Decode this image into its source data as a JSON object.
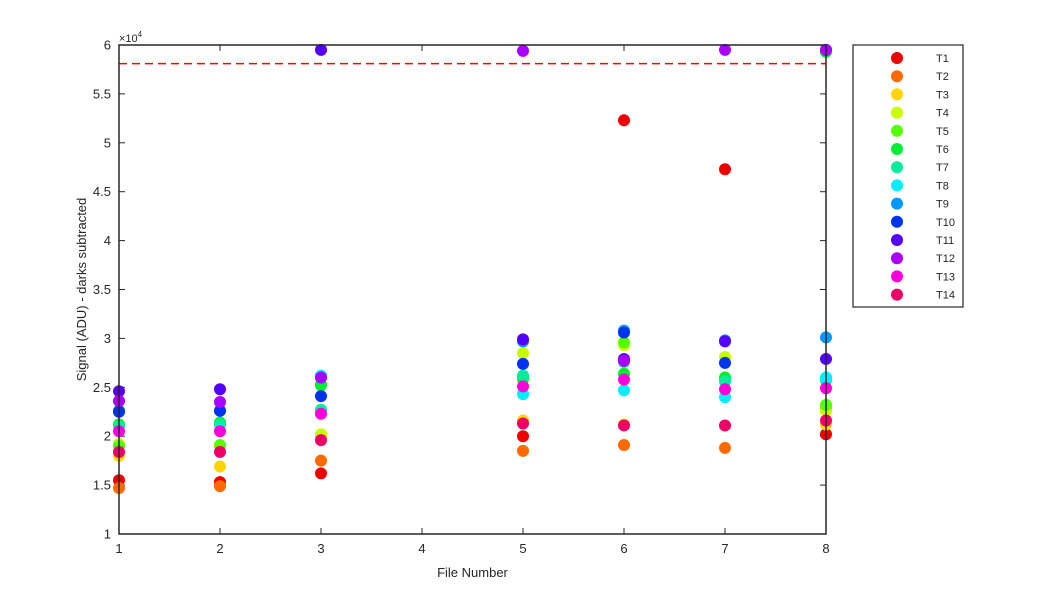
{
  "chart_data": {
    "type": "scatter",
    "title": "",
    "xlabel": "File Number",
    "ylabel": "Signal (ADU) - darks subtracted",
    "xlim": [
      1,
      8
    ],
    "ylim": [
      10000,
      60000
    ],
    "x_ticks": [
      "1",
      "2",
      "3",
      "4",
      "5",
      "6",
      "7",
      "8"
    ],
    "y_ticks": [
      "1",
      "1.5",
      "2",
      "2.5",
      "3",
      "3.5",
      "4",
      "4.5",
      "5",
      "5.5",
      "6"
    ],
    "y_tick_values": [
      10000,
      15000,
      20000,
      25000,
      30000,
      35000,
      40000,
      45000,
      50000,
      55000,
      60000
    ],
    "y_exponent_label": "×10",
    "y_exponent": "4",
    "threshold": {
      "value": 58100,
      "color": "#ff0000",
      "style": "dashed"
    },
    "legend_position": "outside-right",
    "series": [
      {
        "name": "T1",
        "color": "#ee0000",
        "x": [
          1,
          2,
          3,
          5,
          6,
          7,
          8
        ],
        "y": [
          15500,
          15300,
          16200,
          20000,
          52300,
          47300,
          20200
        ]
      },
      {
        "name": "T2",
        "color": "#ff6a00",
        "x": [
          1,
          2,
          3,
          5,
          6,
          7,
          8
        ],
        "y": [
          14700,
          14900,
          17500,
          18500,
          19100,
          18800,
          22800
        ]
      },
      {
        "name": "T3",
        "color": "#ffd400",
        "x": [
          1,
          2,
          3,
          5,
          6,
          7,
          8
        ],
        "y": [
          18000,
          16900,
          20000,
          21600,
          21200,
          21100,
          21200
        ]
      },
      {
        "name": "T4",
        "color": "#c8ff00",
        "x": [
          1,
          2,
          3,
          5,
          6,
          7,
          8
        ],
        "y": [
          19200,
          19000,
          20200,
          28500,
          29300,
          28100,
          22600
        ]
      },
      {
        "name": "T5",
        "color": "#55ff00",
        "x": [
          1,
          2,
          3,
          5,
          6,
          7,
          8
        ],
        "y": [
          19000,
          19100,
          25300,
          25800,
          29600,
          25700,
          23200
        ]
      },
      {
        "name": "T6",
        "color": "#00ee33",
        "x": [
          1,
          2,
          3,
          5,
          6,
          7,
          8
        ],
        "y": [
          21200,
          21400,
          25200,
          26000,
          26400,
          26000,
          59300
        ]
      },
      {
        "name": "T7",
        "color": "#00ee99",
        "x": [
          1,
          2,
          3,
          5,
          6,
          7,
          8
        ],
        "y": [
          21000,
          21200,
          22700,
          26200,
          27600,
          25600,
          25700
        ]
      },
      {
        "name": "T8",
        "color": "#00eeff",
        "x": [
          1,
          2,
          3,
          5,
          6,
          7,
          8
        ],
        "y": [
          20500,
          20600,
          26200,
          24300,
          24700,
          24000,
          26000
        ]
      },
      {
        "name": "T9",
        "color": "#0099ff",
        "x": [
          1,
          2,
          3,
          5,
          6,
          7,
          8
        ],
        "y": [
          22600,
          22600,
          26000,
          29700,
          30800,
          29800,
          30100
        ]
      },
      {
        "name": "T10",
        "color": "#0033ee",
        "x": [
          1,
          2,
          3,
          5,
          6,
          7,
          8
        ],
        "y": [
          22500,
          22600,
          24100,
          27400,
          30600,
          27500,
          59500
        ]
      },
      {
        "name": "T11",
        "color": "#5500ff",
        "x": [
          1,
          2,
          3,
          5,
          6,
          7,
          8
        ],
        "y": [
          24600,
          24800,
          59500,
          29900,
          27900,
          29700,
          27900
        ]
      },
      {
        "name": "T12",
        "color": "#aa00ff",
        "x": [
          1,
          2,
          3,
          5,
          6,
          7,
          8
        ],
        "y": [
          23600,
          23500,
          26000,
          59400,
          27700,
          59500,
          59500
        ]
      },
      {
        "name": "T13",
        "color": "#ff00dd",
        "x": [
          1,
          2,
          3,
          5,
          6,
          7,
          8
        ],
        "y": [
          20500,
          20500,
          22300,
          25100,
          25800,
          24800,
          24900
        ]
      },
      {
        "name": "T14",
        "color": "#ee0066",
        "x": [
          1,
          2,
          3,
          5,
          6,
          7,
          8
        ],
        "y": [
          18400,
          18400,
          19600,
          21300,
          21100,
          21100,
          21600
        ]
      }
    ]
  }
}
